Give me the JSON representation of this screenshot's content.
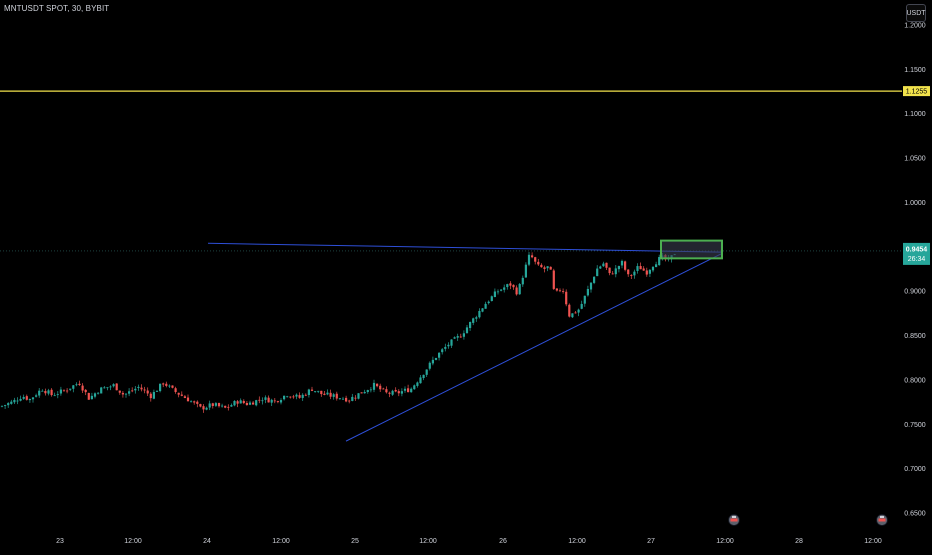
{
  "header": {
    "symbol_title": "MNTUSDT SPOT, 30, BYBIT",
    "currency_button": "USDT"
  },
  "colors": {
    "background": "#000000",
    "up_candle": "#26a69a",
    "down_candle": "#ef5350",
    "trendline": "#2e4fd8",
    "horizontal_line": "#f2e34c",
    "box_outline": "#4caf50",
    "box_fill": "#3a3f4f",
    "price_tag": "#26a69a",
    "axis_text": "#d1d4dc"
  },
  "chart_data": {
    "type": "candlestick",
    "y_axis": {
      "ticks": [
        "1.2000",
        "1.1500",
        "1.1000",
        "1.0500",
        "1.0000",
        "0.9500",
        "0.9000",
        "0.8500",
        "0.8000",
        "0.7500",
        "0.7000",
        "0.6500"
      ],
      "range": [
        0.64,
        1.21
      ]
    },
    "x_axis": {
      "ticks": [
        "23",
        "12:00",
        "24",
        "12:00",
        "25",
        "12:00",
        "26",
        "12:00",
        "27",
        "12:00",
        "28",
        "12:00"
      ]
    },
    "horizontal_line": {
      "price": 1.1255,
      "label": "1.1255"
    },
    "current_price": {
      "price": 0.9454,
      "label": "0.9454",
      "countdown": "26:34"
    },
    "resistance_line": {
      "start": {
        "x": "24 00:00",
        "y": 0.954
      },
      "end": {
        "x": "27 12:00",
        "y": 0.944
      }
    },
    "support_line": {
      "start": {
        "x": "25 00:00",
        "y": 0.731
      },
      "end": {
        "x": "27 12:00",
        "y": 0.942
      }
    },
    "highlight_box": {
      "x_from": "27 00:00",
      "x_to": "27 12:00",
      "y_from": 0.937,
      "y_to": 0.957
    },
    "close_path": [
      [
        0.0,
        0.77
      ],
      [
        0.5,
        0.775
      ],
      [
        0.9,
        0.782
      ],
      [
        1.2,
        0.778
      ],
      [
        1.7,
        0.79
      ],
      [
        2.1,
        0.783
      ],
      [
        2.6,
        0.788
      ],
      [
        3.2,
        0.797
      ],
      [
        3.6,
        0.779
      ],
      [
        4.0,
        0.789
      ],
      [
        4.6,
        0.794
      ],
      [
        5.0,
        0.783
      ],
      [
        5.6,
        0.792
      ],
      [
        6.1,
        0.782
      ],
      [
        6.6,
        0.797
      ],
      [
        7.0,
        0.788
      ],
      [
        7.6,
        0.778
      ],
      [
        8.1,
        0.768
      ],
      [
        8.6,
        0.772
      ],
      [
        9.1,
        0.768
      ],
      [
        9.6,
        0.776
      ],
      [
        10.0,
        0.773
      ],
      [
        10.6,
        0.779
      ],
      [
        11.1,
        0.776
      ],
      [
        11.6,
        0.784
      ],
      [
        12.1,
        0.78
      ],
      [
        12.6,
        0.79
      ],
      [
        13.0,
        0.784
      ],
      [
        13.6,
        0.781
      ],
      [
        14.1,
        0.778
      ],
      [
        14.6,
        0.786
      ],
      [
        15.1,
        0.794
      ],
      [
        15.6,
        0.785
      ],
      [
        16.0,
        0.785
      ],
      [
        16.6,
        0.79
      ],
      [
        17.1,
        0.808
      ],
      [
        17.6,
        0.826
      ],
      [
        18.1,
        0.84
      ],
      [
        18.6,
        0.85
      ],
      [
        19.1,
        0.868
      ],
      [
        19.6,
        0.886
      ],
      [
        20.1,
        0.9
      ],
      [
        20.6,
        0.908
      ],
      [
        20.9,
        0.898
      ],
      [
        21.2,
        0.925
      ],
      [
        21.4,
        0.942
      ],
      [
        21.7,
        0.928
      ],
      [
        22.0,
        0.925
      ],
      [
        22.2,
        0.928
      ],
      [
        22.4,
        0.895
      ],
      [
        22.7,
        0.905
      ],
      [
        23.0,
        0.872
      ],
      [
        23.4,
        0.88
      ],
      [
        23.8,
        0.905
      ],
      [
        24.1,
        0.925
      ],
      [
        24.4,
        0.932
      ],
      [
        24.6,
        0.918
      ],
      [
        24.9,
        0.925
      ],
      [
        25.1,
        0.933
      ],
      [
        25.4,
        0.915
      ],
      [
        25.8,
        0.928
      ],
      [
        26.1,
        0.921
      ],
      [
        26.4,
        0.931
      ],
      [
        26.7,
        0.938
      ],
      [
        27.0,
        0.934
      ],
      [
        27.3,
        0.945
      ]
    ]
  }
}
